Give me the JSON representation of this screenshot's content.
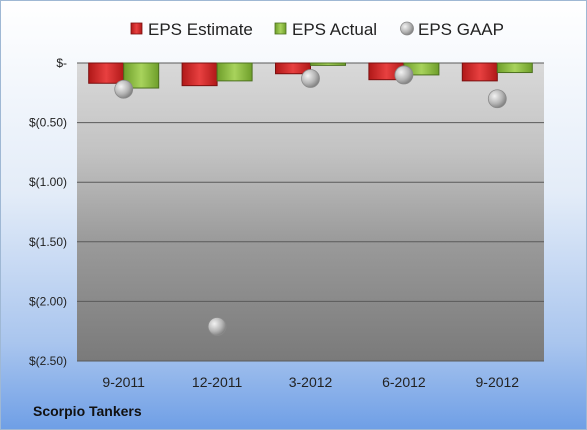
{
  "chart_data": {
    "type": "bar",
    "categories": [
      "9-2011",
      "12-2011",
      "3-2012",
      "6-2012",
      "9-2012"
    ],
    "series": [
      {
        "name": "EPS Estimate",
        "kind": "bar",
        "color": "#d42a2a",
        "values": [
          -0.17,
          -0.19,
          -0.09,
          -0.14,
          -0.15
        ]
      },
      {
        "name": "EPS Actual",
        "kind": "bar",
        "color": "#8cbf3f",
        "values": [
          -0.21,
          -0.15,
          -0.02,
          -0.1,
          -0.08
        ]
      },
      {
        "name": "EPS GAAP",
        "kind": "scatter",
        "color": "#a9a9a9",
        "values": [
          -0.22,
          -2.21,
          -0.13,
          -0.1,
          -0.3
        ]
      }
    ],
    "yticks": [
      0,
      -0.5,
      -1.0,
      -1.5,
      -2.0,
      -2.5
    ],
    "ytick_labels": [
      "$-",
      "$(0.50)",
      "$(1.00)",
      "$(1.50)",
      "$(2.00)",
      "$(2.50)"
    ],
    "ylim": [
      -2.5,
      0
    ],
    "grid": true,
    "legend_position": "top"
  },
  "company_label": "Scorpio Tankers"
}
